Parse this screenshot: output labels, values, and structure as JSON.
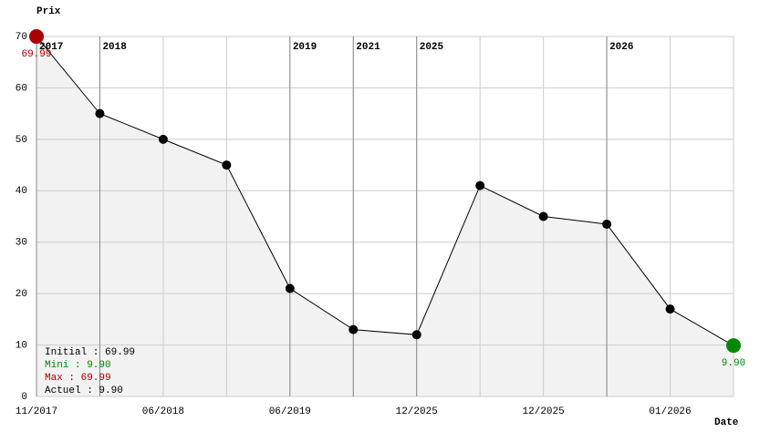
{
  "chart_data": {
    "type": "line",
    "y_axis_title": "Prix",
    "x_axis_title": "Date",
    "categories": [
      "11/2017",
      null,
      "06/2018",
      null,
      "06/2019",
      null,
      "12/2025",
      null,
      "12/2025",
      null,
      "01/2026",
      null
    ],
    "year_labels": [
      "2017",
      "2018",
      null,
      null,
      "2019",
      "2021",
      "2025",
      null,
      null,
      "2026",
      null,
      null
    ],
    "values": [
      69.99,
      55,
      50,
      45,
      21,
      13,
      12,
      41,
      35,
      33.5,
      17,
      9.9
    ],
    "value_labels": [
      "69.99",
      null,
      null,
      null,
      null,
      null,
      null,
      null,
      null,
      null,
      null,
      "9.90"
    ],
    "color": "#000000",
    "area_color": "#f2f2f2",
    "max_color": "#aa0000",
    "min_color": "#008800",
    "ylim": [
      0,
      70
    ],
    "yticks": [
      0,
      10,
      20,
      30,
      40,
      50,
      60,
      70
    ],
    "grid": true,
    "summary": [
      {
        "text": "Initial : 69.99",
        "color": "#000000"
      },
      {
        "text": "Mini : 9.90",
        "color": "#008800"
      },
      {
        "text": "Max : 69.99",
        "color": "#aa0000"
      },
      {
        "text": "Actuel : 9.90",
        "color": "#000000"
      }
    ]
  }
}
